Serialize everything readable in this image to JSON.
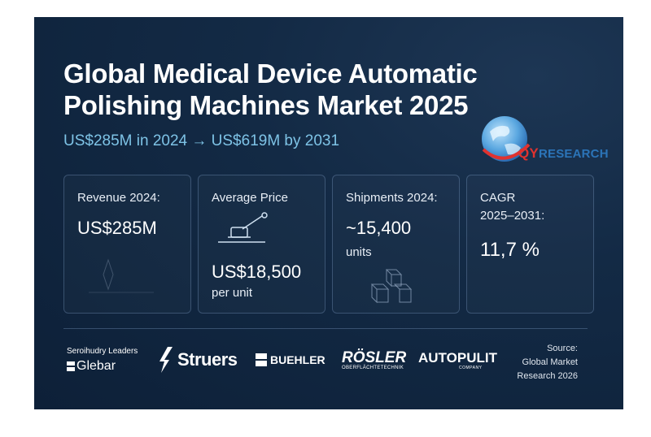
{
  "title": "Global Medical Device Automatic Polishing Machines Market 2025",
  "subtitle": "US$285M in 2024 → US$619M by 2031",
  "logo": {
    "q": "QY",
    "rest": "RESEARCH"
  },
  "cards": [
    {
      "label": "Revenue 2024:",
      "value": "US$285M"
    },
    {
      "label": "Average Price",
      "value": "US$18,500",
      "unit": "per unit"
    },
    {
      "label": "Shipments 2024:",
      "value": "~15,400",
      "unit": "units"
    },
    {
      "label_line1": "CAGR",
      "label_line2": "2025–2031:",
      "value": "11,7 %"
    }
  ],
  "brands": {
    "glebar_tag": "Seroihudry Leaders",
    "glebar": "Glebar",
    "struers": "Struers",
    "buehler": "BUEHLER",
    "rosler": "RÖSLER",
    "rosler_tag": "OBERFLÄCHTETECHNIK",
    "autopulit": "AUTOPULIT",
    "autopulit_tag": "COMPANY"
  },
  "source": {
    "line1": "Source:",
    "line2": "Global Market",
    "line3": "Research 2026"
  },
  "colors": {
    "background": "#132a45",
    "accent": "#7ec3e6"
  }
}
